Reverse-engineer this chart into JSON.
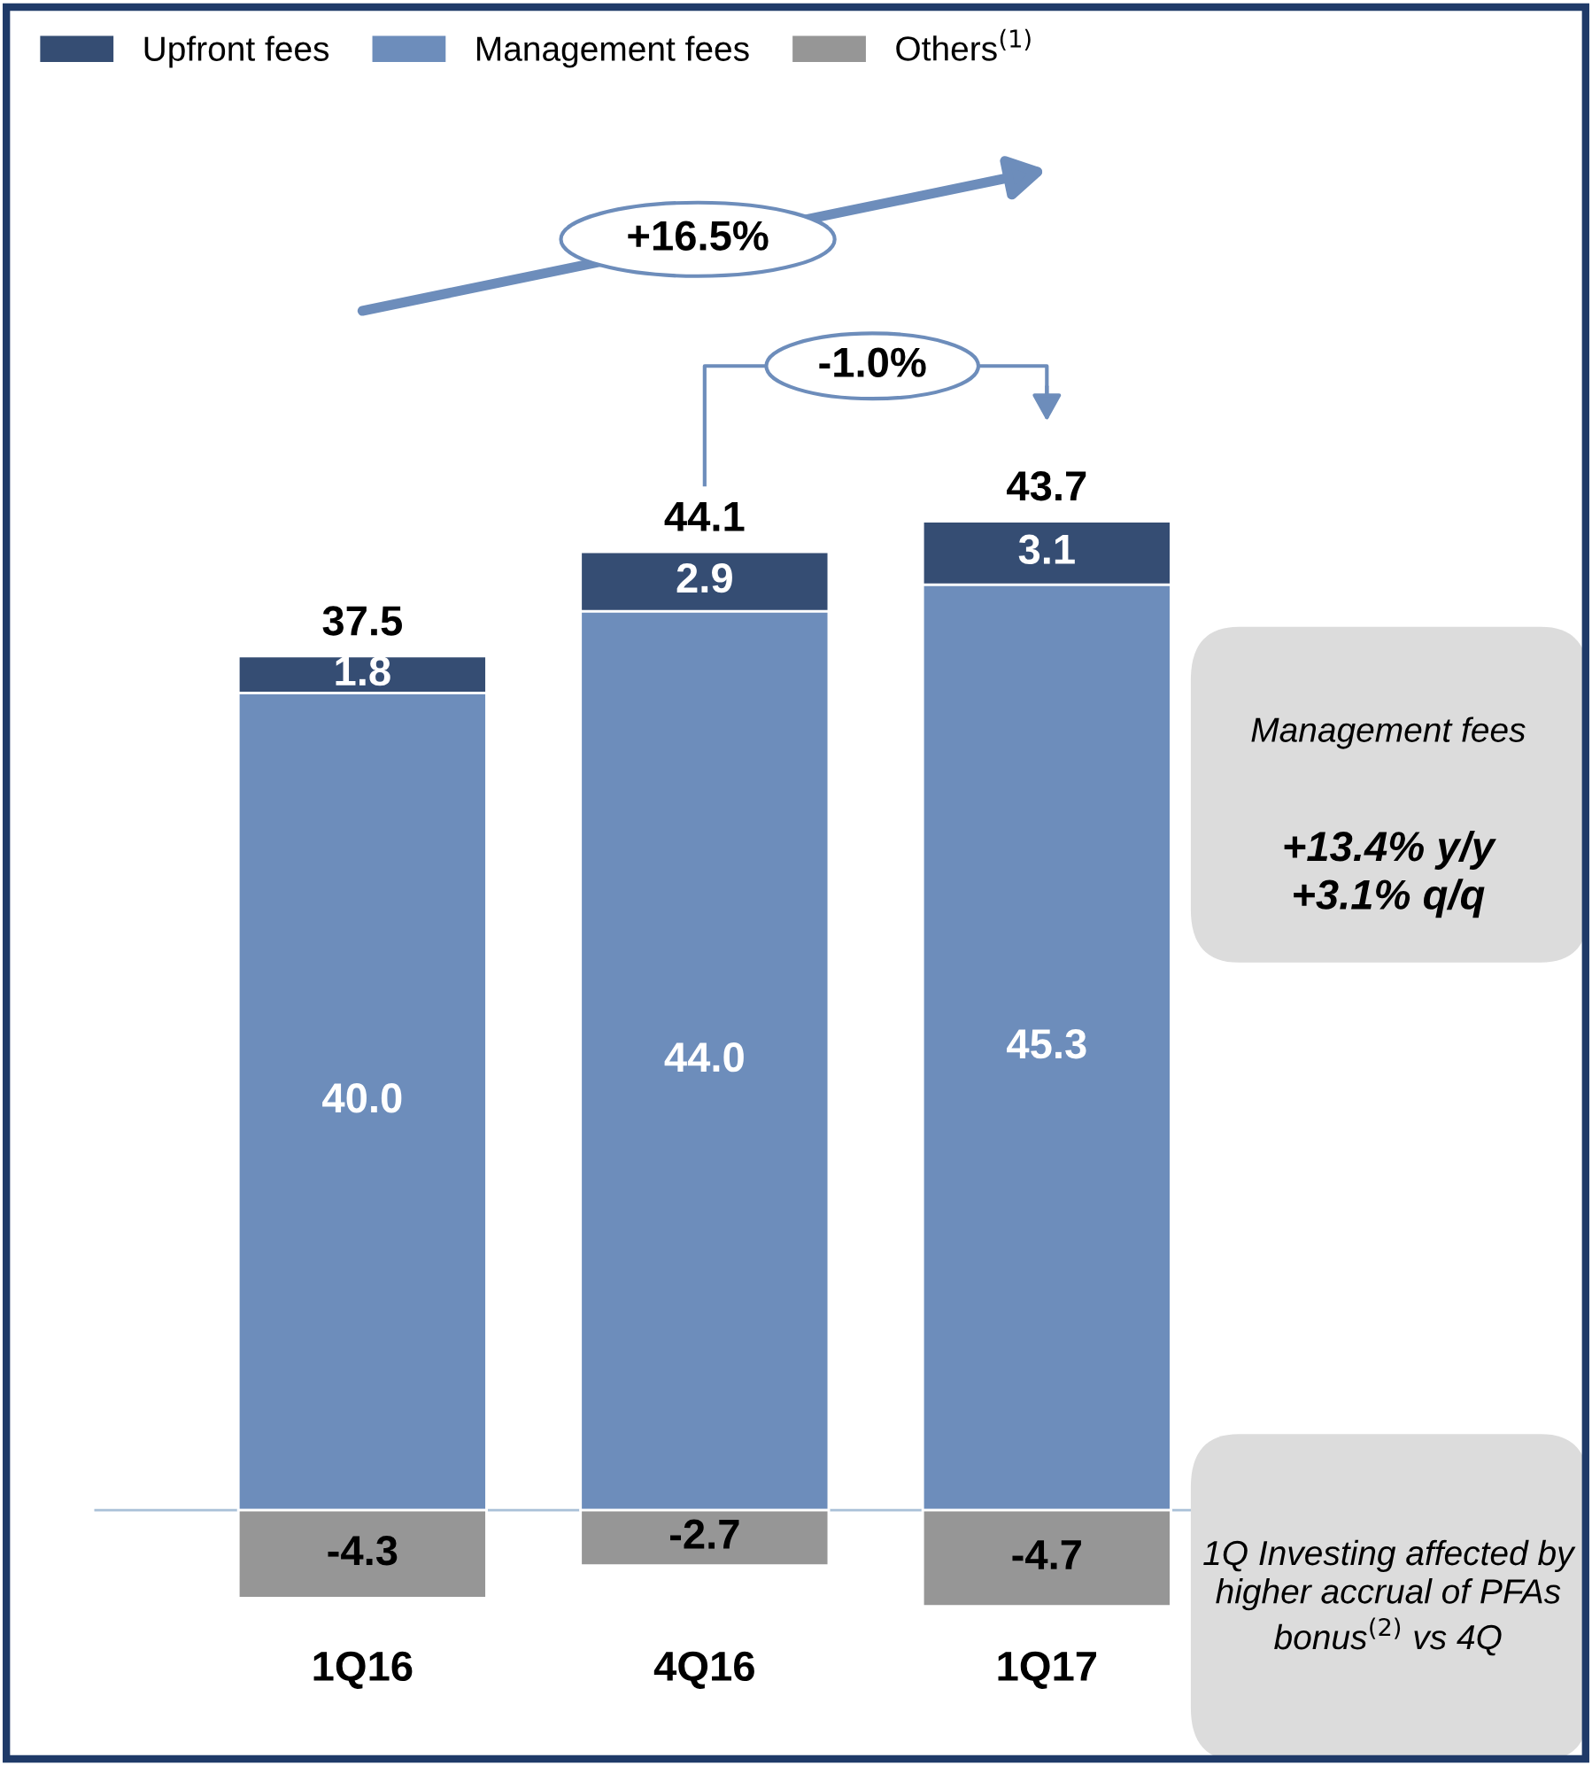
{
  "chart_data": {
    "type": "bar",
    "stacked": true,
    "categories": [
      "1Q16",
      "4Q16",
      "1Q17"
    ],
    "series": [
      {
        "name": "Management fees",
        "color": "#6d8dbb",
        "values": [
          40.0,
          44.0,
          45.3
        ],
        "value_labels": [
          "40.0",
          "44.0",
          "45.3"
        ]
      },
      {
        "name": "Upfront fees",
        "color": "#354d73",
        "values": [
          1.8,
          2.9,
          3.1
        ],
        "value_labels": [
          "1.8",
          "2.9",
          "3.1"
        ]
      },
      {
        "name": "Others$^{(1)}$",
        "color": "#969696",
        "values": [
          -4.3,
          -2.7,
          -4.7
        ],
        "value_labels": [
          "-4.3",
          "-2.7",
          "-4.7"
        ]
      }
    ],
    "totals": [
      "37.5",
      "44.1",
      "43.7"
    ],
    "ref_lines": [
      {
        "axis": "y",
        "value": 0,
        "color": "#a9c0d8"
      }
    ],
    "tick_labels": "x",
    "grid": false,
    "legend": "top left",
    "annotations": [
      "+16.5%",
      "-1.0%",
      "Management fees",
      "+13.4% y/y\n+3.1% q/q",
      "1Q Investing affected by higher accrual of PFAs bonus$^{(2)}$ vs 4Q"
    ]
  }
}
